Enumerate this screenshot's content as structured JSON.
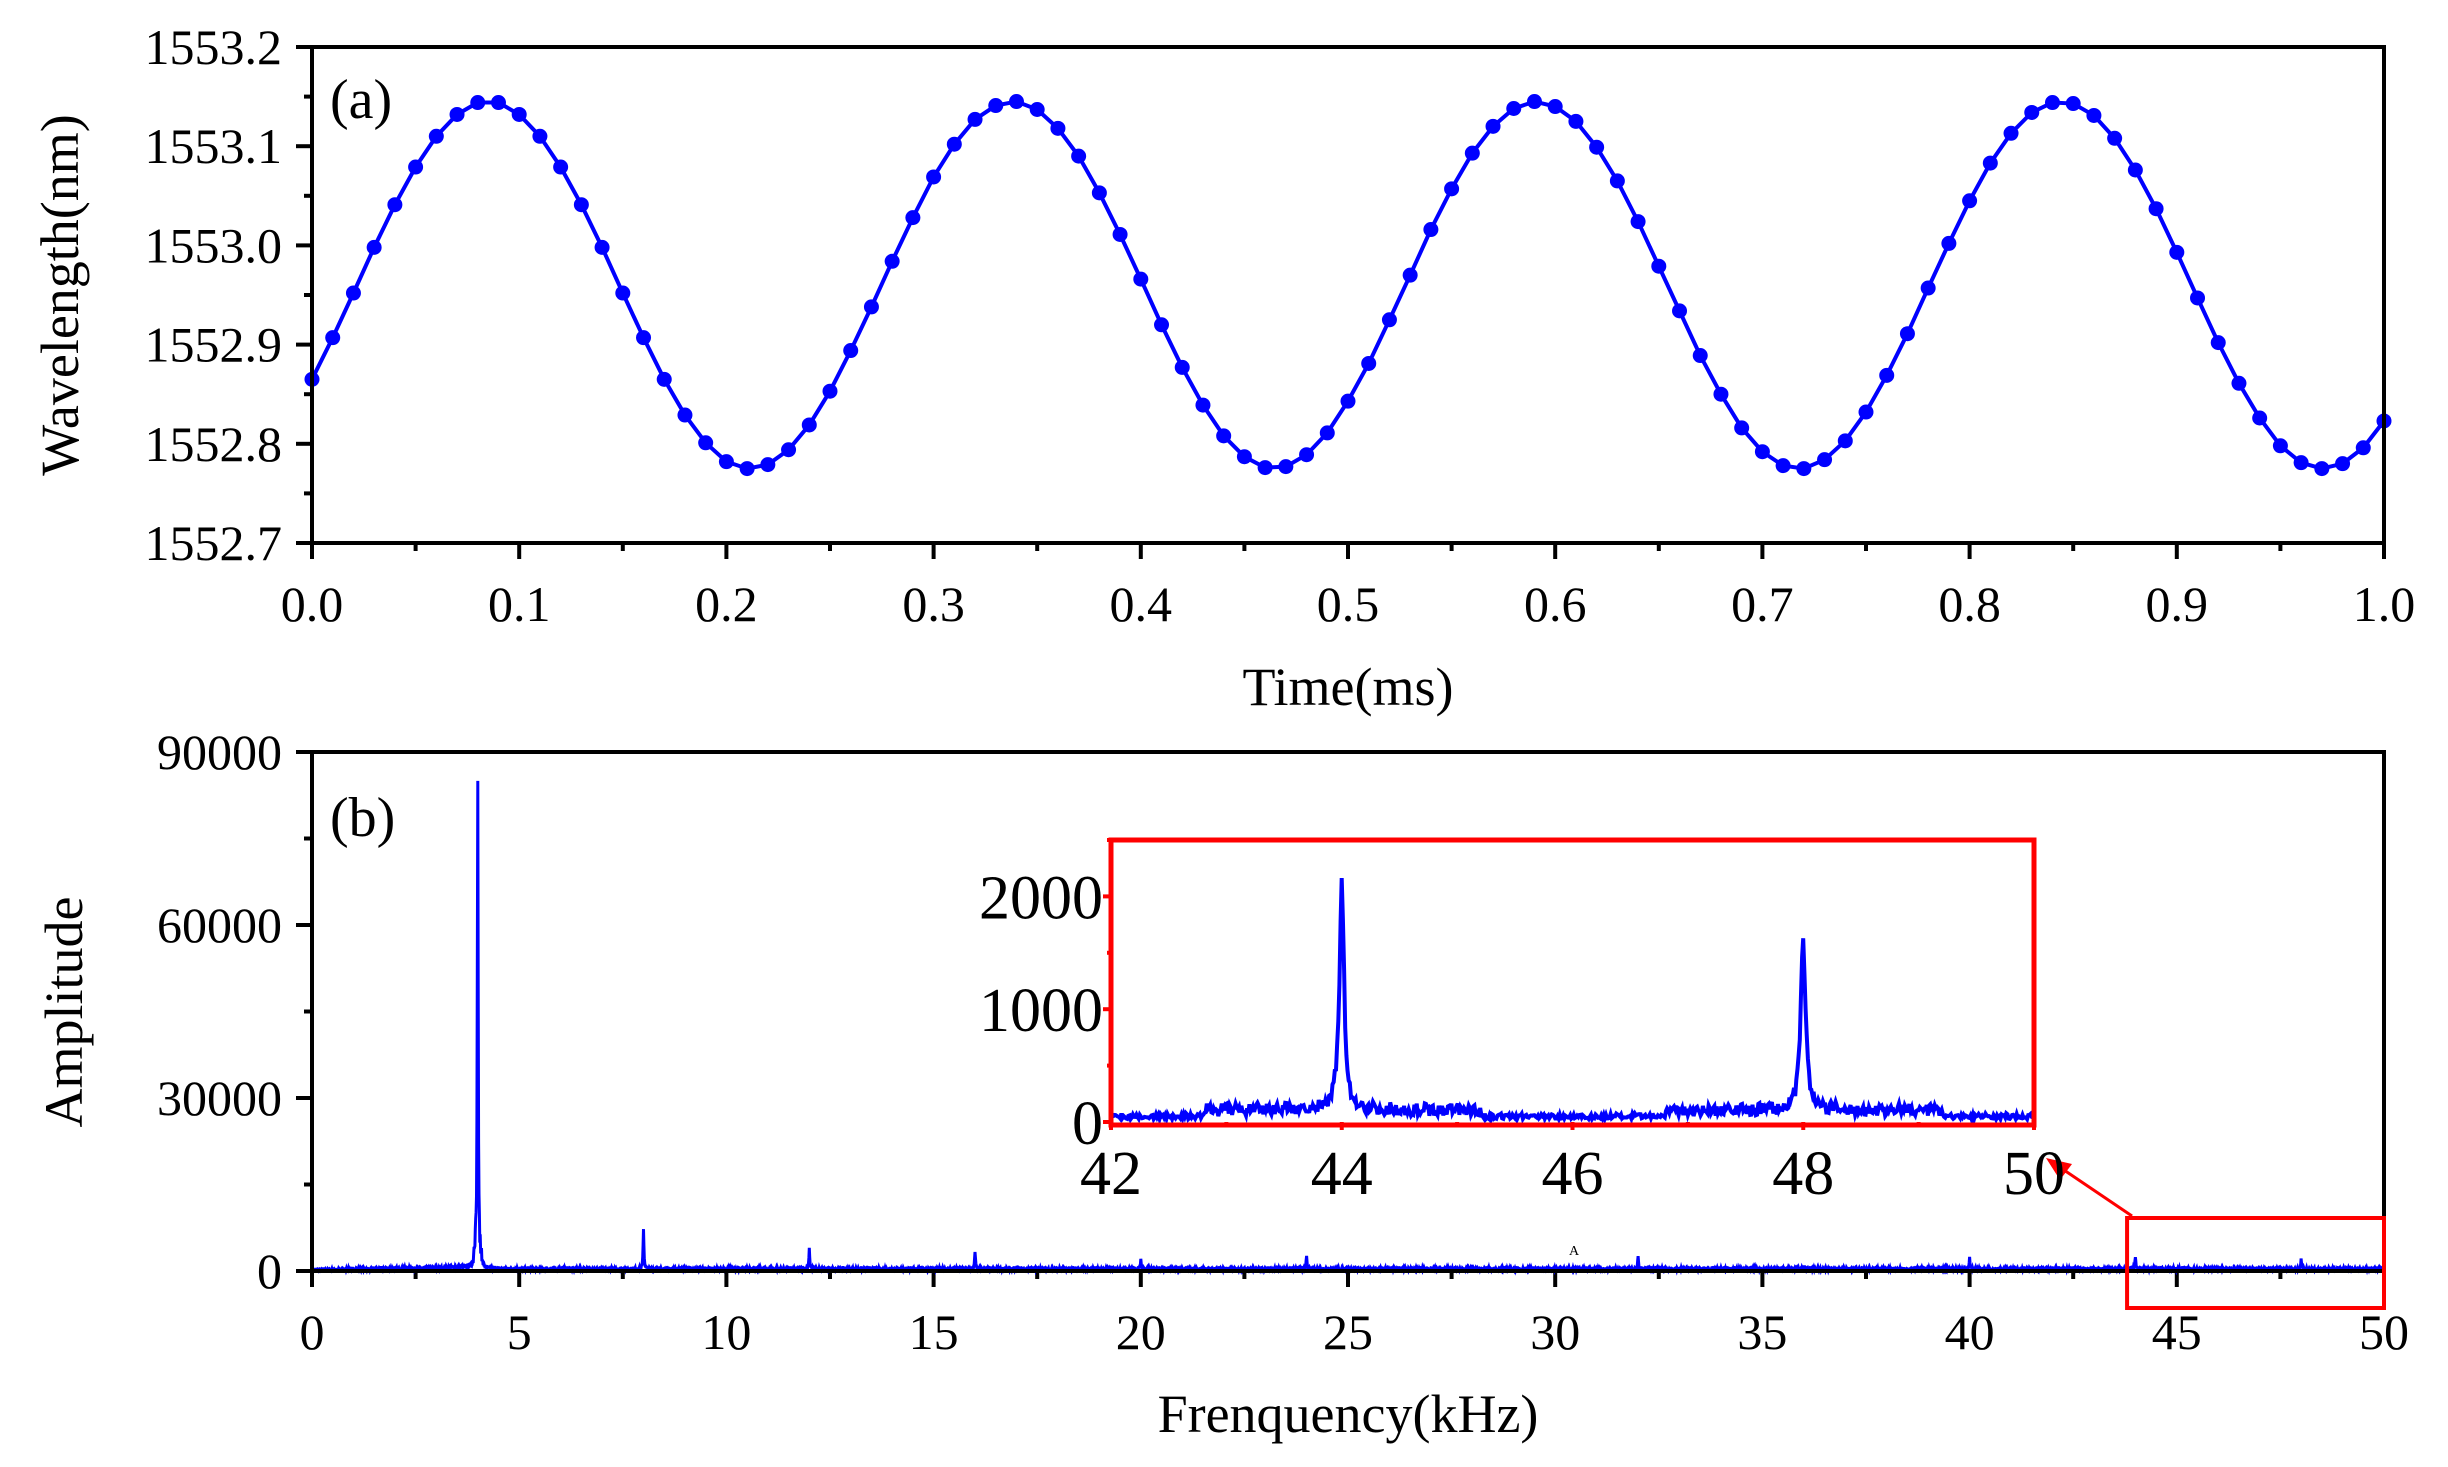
{
  "chart_data": [
    {
      "type": "line",
      "panel_label": "(a)",
      "xlabel": "Time(ms)",
      "ylabel": "Wavelength(nm)",
      "xlim": [
        0.0,
        1.0
      ],
      "ylim": [
        1552.7,
        1553.2
      ],
      "xticks": [
        "0.0",
        "0.1",
        "0.2",
        "0.3",
        "0.4",
        "0.5",
        "0.6",
        "0.7",
        "0.8",
        "0.9",
        "1.0"
      ],
      "yticks": [
        "1552.7",
        "1552.8",
        "1552.9",
        "1553.0",
        "1553.1",
        "1553.2"
      ],
      "color": "#0000ff",
      "marker": "circle",
      "x_step": 0.01,
      "y": [
        1552.865,
        1552.907,
        1552.952,
        1552.998,
        1553.041,
        1553.079,
        1553.11,
        1553.132,
        1553.144,
        1553.144,
        1553.132,
        1553.11,
        1553.079,
        1553.041,
        1552.998,
        1552.952,
        1552.907,
        1552.865,
        1552.829,
        1552.801,
        1552.782,
        1552.775,
        1552.779,
        1552.794,
        1552.819,
        1552.853,
        1552.894,
        1552.938,
        1552.984,
        1553.028,
        1553.069,
        1553.102,
        1553.127,
        1553.141,
        1553.145,
        1553.137,
        1553.118,
        1553.09,
        1553.053,
        1553.011,
        1552.966,
        1552.92,
        1552.877,
        1552.839,
        1552.808,
        1552.787,
        1552.776,
        1552.777,
        1552.789,
        1552.811,
        1552.843,
        1552.881,
        1552.925,
        1552.97,
        1553.016,
        1553.057,
        1553.093,
        1553.12,
        1553.138,
        1553.145,
        1553.14,
        1553.125,
        1553.099,
        1553.065,
        1553.024,
        1552.979,
        1552.934,
        1552.889,
        1552.85,
        1552.816,
        1552.792,
        1552.778,
        1552.775,
        1552.784,
        1552.803,
        1552.832,
        1552.869,
        1552.911,
        1552.957,
        1553.002,
        1553.045,
        1553.083,
        1553.113,
        1553.134,
        1553.144,
        1553.143,
        1553.131,
        1553.108,
        1553.076,
        1553.037,
        1552.993,
        1552.947,
        1552.902,
        1552.861,
        1552.826,
        1552.798,
        1552.781,
        1552.775,
        1552.78,
        1552.796,
        1552.823
      ]
    },
    {
      "type": "line",
      "panel_label": "(b)",
      "xlabel": "Frenquency(kHz)",
      "ylabel": "Amplitude",
      "xlim": [
        0,
        50
      ],
      "ylim": [
        0,
        90000
      ],
      "xticks": [
        "0",
        "5",
        "10",
        "15",
        "20",
        "25",
        "30",
        "35",
        "40",
        "45",
        "50"
      ],
      "yticks": [
        "0",
        "30000",
        "60000",
        "90000"
      ],
      "color": "#0000ff",
      "noise_floor": 500,
      "peaks": [
        {
          "freq": 4,
          "amplitude": 82000
        },
        {
          "freq": 8,
          "amplitude": 7000
        },
        {
          "freq": 12,
          "amplitude": 3600
        },
        {
          "freq": 16,
          "amplitude": 2900
        },
        {
          "freq": 20,
          "amplitude": 1600
        },
        {
          "freq": 24,
          "amplitude": 2100
        },
        {
          "freq": 28,
          "amplitude": 600
        },
        {
          "freq": 32,
          "amplitude": 2300
        },
        {
          "freq": 36,
          "amplitude": 450
        },
        {
          "freq": 40,
          "amplitude": 1900
        },
        {
          "freq": 44,
          "amplitude": 1950
        },
        {
          "freq": 48,
          "amplitude": 1650
        }
      ],
      "annotation": "A",
      "highlight_box": {
        "x_range": [
          43.8,
          50
        ],
        "y_range": [
          0,
          5000
        ],
        "color": "#ff0000"
      },
      "inset": {
        "xlim": [
          42,
          50
        ],
        "ylim": [
          0,
          2500
        ],
        "xticks": [
          "42",
          "44",
          "46",
          "48",
          "50"
        ],
        "yticks": [
          "0",
          "1000",
          "2000"
        ],
        "frame_color": "#ff0000",
        "noise_floor": 60,
        "peaks": [
          {
            "freq": 44,
            "amplitude": 1950
          },
          {
            "freq": 48,
            "amplitude": 1650
          }
        ]
      }
    }
  ]
}
